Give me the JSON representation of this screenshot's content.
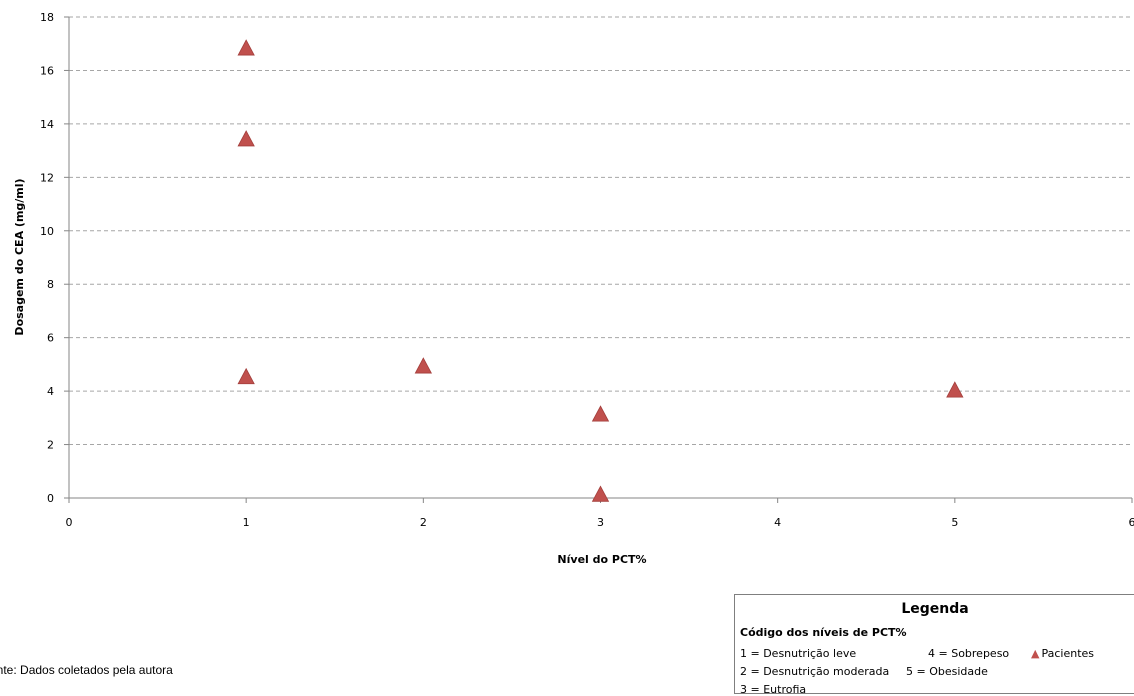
{
  "chart_data": {
    "type": "scatter",
    "title": "",
    "xlabel": "Nível do PCT%",
    "ylabel": "Dosagem do CEA (mg/ml)",
    "xlim": [
      0,
      6
    ],
    "ylim": [
      0,
      18
    ],
    "xticks": [
      0,
      1,
      2,
      3,
      4,
      5,
      6
    ],
    "yticks": [
      0,
      2,
      4,
      6,
      8,
      10,
      12,
      14,
      16,
      18
    ],
    "grid": "horizontal-dashed",
    "series": [
      {
        "name": "Pacientes",
        "marker": "triangle",
        "color": "#c0504d",
        "points": [
          {
            "x": 1,
            "y": 16.8
          },
          {
            "x": 1,
            "y": 13.4
          },
          {
            "x": 1,
            "y": 4.5
          },
          {
            "x": 2,
            "y": 4.9
          },
          {
            "x": 3,
            "y": 3.1
          },
          {
            "x": 3,
            "y": 0.1
          },
          {
            "x": 5,
            "y": 4.0
          }
        ]
      }
    ]
  },
  "legend": {
    "title": "Legenda",
    "subtitle": "Código dos níveis de PCT%",
    "codes": [
      "1 = Desnutrição leve",
      "2 = Desnutrição moderada",
      "3 = Eutrofia",
      "4 = Sobrepeso",
      "5 = Obesidade"
    ],
    "series_label": "Pacientes",
    "series_marker": "▲"
  },
  "source": "onte: Dados coletados pela autora"
}
